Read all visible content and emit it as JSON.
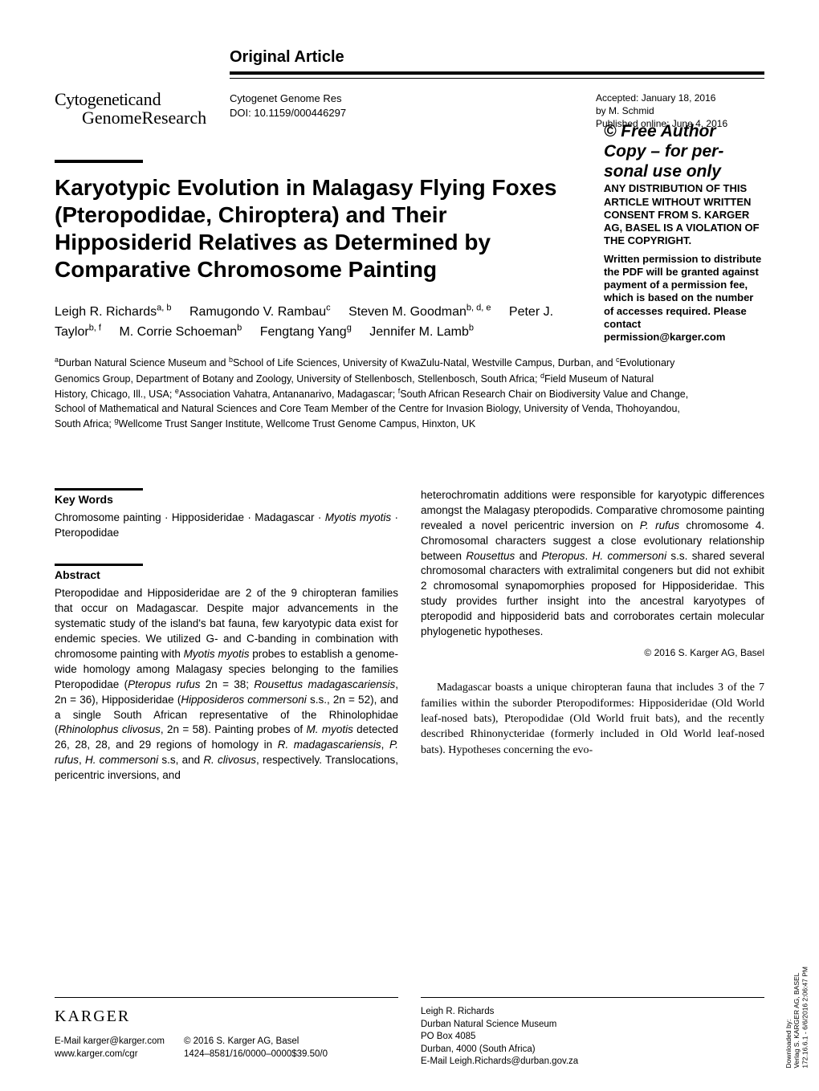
{
  "article_type": "Original Article",
  "journal_logo": {
    "line1a": "Cytogenetic",
    "line1b": "and",
    "line2": "GenomeResearch"
  },
  "journal_info": {
    "line1": "Cytogenet Genome Res",
    "line2": "DOI: 10.1159/000446297"
  },
  "accepted": {
    "line1": "Accepted: January 18, 2016",
    "line2": "by M. Schmid",
    "line3": "Published online: June 4, 2016"
  },
  "frea": {
    "title1": "© Free Author",
    "title2": "Copy – for per-",
    "title3": "sonal use only",
    "body": "ANY DISTRIBUTION OF THIS ARTICLE WITHOUT WRITTEN CONSENT FROM S. KARGER AG, BASEL IS A VIOLATION OF THE COPYRIGHT.",
    "note": "Written permission to distribute the PDF will be granted against payment of a permission fee, which is based on the number of accesses required. Please contact permission@karger.com"
  },
  "title": "Karyotypic Evolution in Malagasy Flying Foxes (Pteropodidae, Chiroptera) and Their Hipposiderid Relatives as Determined by Comparative Chromosome Painting",
  "authors": [
    {
      "name": "Leigh R. Richards",
      "sup": "a, b"
    },
    {
      "name": "Ramugondo V. Rambau",
      "sup": "c"
    },
    {
      "name": "Steven M. Goodman",
      "sup": "b, d, e"
    },
    {
      "name": "Peter J. Taylor",
      "sup": "b, f"
    },
    {
      "name": "M. Corrie Schoeman",
      "sup": "b"
    },
    {
      "name": "Fengtang Yang",
      "sup": "g"
    },
    {
      "name": "Jennifer M. Lamb",
      "sup": "b"
    }
  ],
  "affiliations_html": "<sup>a</sup>Durban Natural Science Museum and <sup>b</sup>School of Life Sciences, University of KwaZulu-Natal, Westville Campus, Durban, and <sup>c</sup>Evolutionary Genomics Group, Department of Botany and Zoology, University of Stellenbosch, Stellenbosch, South Africa; <sup>d</sup>Field Museum of Natural History, Chicago, Ill., USA; <sup>e</sup>Association Vahatra, Antananarivo, Madagascar; <sup>f</sup>South African Research Chair on Biodiversity Value and Change, School of Mathematical and Natural Sciences and Core Team Member of the Centre for Invasion Biology, University of Venda, Thohoyandou, South Africa; <sup>g</sup>Wellcome Trust Sanger Institute, Wellcome Trust Genome Campus, Hinxton, UK",
  "keywords": {
    "heading": "Key Words",
    "body_html": "Chromosome painting · Hipposideridae · Madagascar · <span class='italic'>Myotis myotis</span> · Pteropodidae"
  },
  "abstract": {
    "heading": "Abstract",
    "col1_html": "Pteropodidae and Hipposideridae are 2 of the 9 chiropteran families that occur on Madagascar. Despite major advancements in the systematic study of the island's bat fauna, few karyotypic data exist for endemic species. We utilized G- and C-banding in combination with chromosome painting with <span class='italic'>Myotis myotis</span> probes to establish a genome-wide homology among Malagasy species belonging to the families Pteropodidae (<span class='italic'>Pteropus rufus</span> 2n = 38; <span class='italic'>Rousettus madagascariensis</span>, 2n = 36), Hipposideridae (<span class='italic'>Hipposideros commersoni</span> s.s., 2n = 52), and a single South African representative of the Rhinolophidae (<span class='italic'>Rhinolophus clivosus</span>, 2n = 58). Painting probes of <span class='italic'>M. myotis</span> detected 26, 28, 28, and 29 regions of homology in <span class='italic'>R. madagascariensis</span>, <span class='italic'>P. rufus</span>, <span class='italic'>H. commersoni</span> s.s, and <span class='italic'>R. clivosus</span>, respectively. Translocations, pericentric inversions, and",
    "col2_html": "heterochromatin additions were responsible for karyotypic differences amongst the Malagasy pteropodids. Comparative chromosome painting revealed a novel pericentric inversion on <span class='italic'>P. rufus</span> chromosome 4. Chromosomal characters suggest a close evolutionary relationship between <span class='italic'>Rousettus</span> and <span class='italic'>Pteropus</span>. <span class='italic'>H. commersoni</span> s.s. shared several chromosomal characters with extralimital congeners but did not exhibit 2 chromosomal synapomorphies proposed for Hipposideridae. This study provides further insight into the ancestral karyotypes of pteropodid and hipposiderid bats and corroborates certain molecular phylogenetic hypotheses."
  },
  "abstract_copy": "© 2016 S. Karger AG, Basel",
  "intro_html": "Madagascar boasts a unique chiropteran fauna that includes 3 of the 7 families within the suborder Pteropodiformes: Hipposideridae (Old World leaf-nosed bats), Pteropodidae (Old World fruit bats), and the recently described Rhinonycteridae (formerly included in Old World leaf-nosed bats). Hypotheses concerning the evo-",
  "footer": {
    "karger_logo": "KARGER",
    "left": {
      "contact1": "E-Mail karger@karger.com",
      "contact2": "www.karger.com/cgr",
      "copy1": "© 2016 S. Karger AG, Basel",
      "copy2": "1424–8581/16/0000–0000$39.50/0"
    },
    "right": {
      "l1": "Leigh R. Richards",
      "l2": "Durban Natural Science Museum",
      "l3": "PO Box 4085",
      "l4": "Durban, 4000 (South Africa)",
      "l5": "E-Mail Leigh.Richards@durban.gov.za"
    }
  },
  "vertical": {
    "l1": "Downloaded by:",
    "l2": "Verlag S. KARGER AG, BASEL",
    "l3": "172.16.6.1 - 6/6/2016 2:06:47 PM"
  }
}
